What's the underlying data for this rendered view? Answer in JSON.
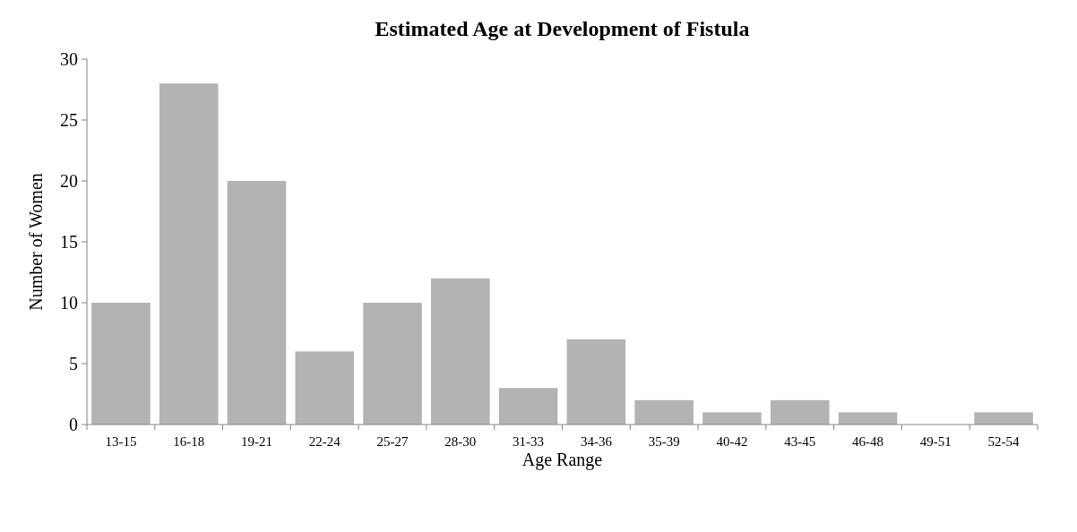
{
  "chart_data": {
    "type": "bar",
    "title": "Estimated Age at Development of Fistula",
    "xlabel": "Age Range",
    "ylabel": "Number of Women",
    "categories": [
      "13-15",
      "16-18",
      "19-21",
      "22-24",
      "25-27",
      "28-30",
      "31-33",
      "34-36",
      "35-39",
      "40-42",
      "43-45",
      "46-48",
      "49-51",
      "52-54"
    ],
    "values": [
      10,
      28,
      20,
      6,
      10,
      12,
      3,
      7,
      2,
      1,
      2,
      1,
      0,
      1
    ],
    "color": "#b3b3b3",
    "ylim": [
      0,
      30
    ],
    "yticks": [
      0,
      5,
      10,
      15,
      20,
      25,
      30
    ],
    "grid": false
  }
}
